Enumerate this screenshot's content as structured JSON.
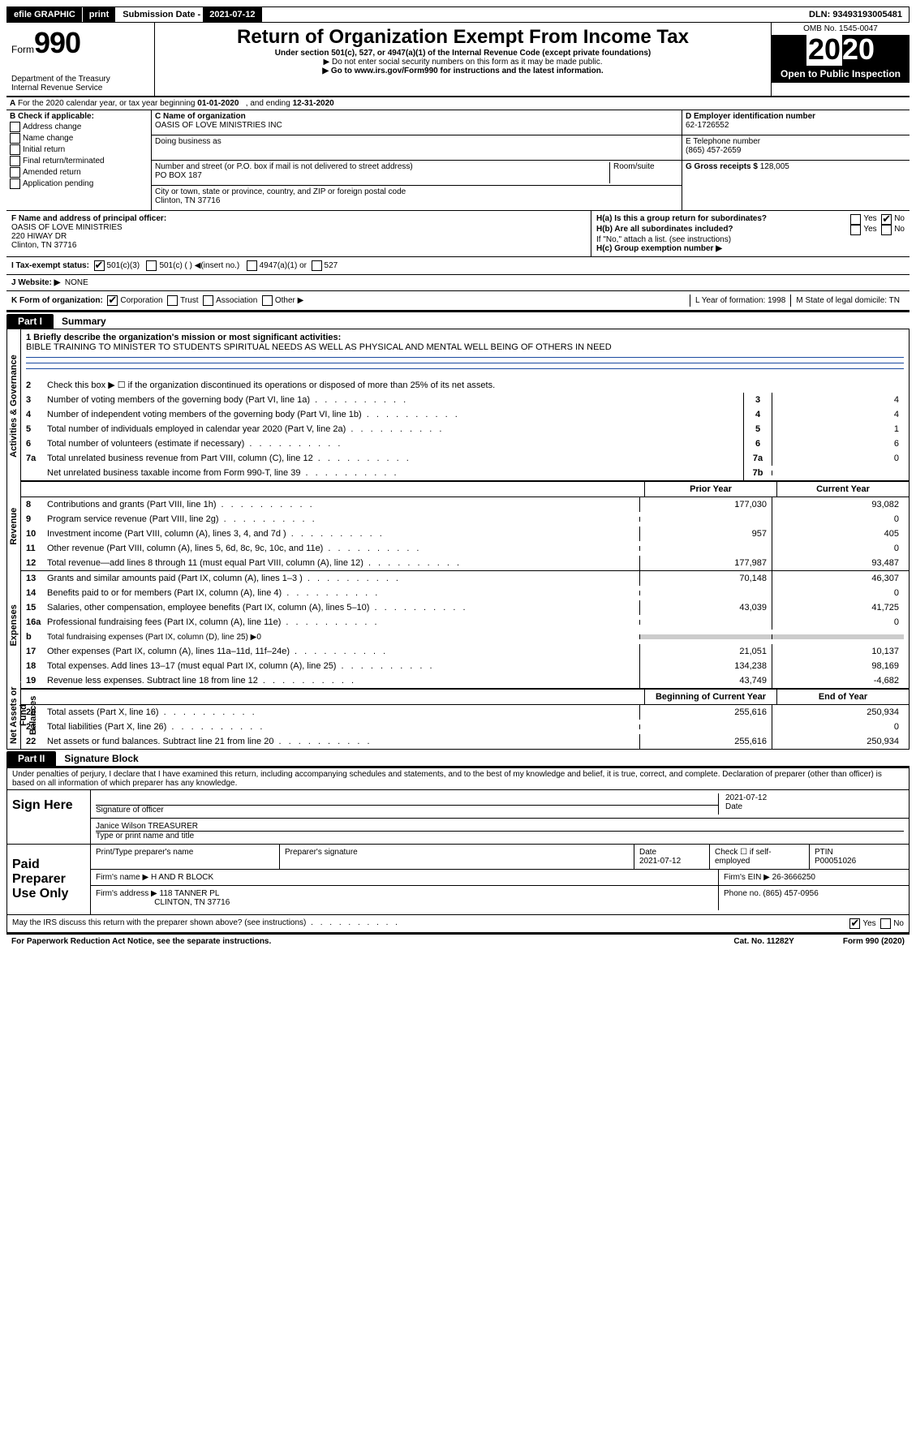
{
  "topbar": {
    "efile": "efile GRAPHIC",
    "print": "print",
    "sub_label": "Submission Date - ",
    "sub_date": "2021-07-12",
    "dln": "DLN: 93493193005481"
  },
  "header": {
    "form_prefix": "Form",
    "form_no": "990",
    "dept": "Department of the Treasury\nInternal Revenue Service",
    "title": "Return of Organization Exempt From Income Tax",
    "sub1": "Under section 501(c), 527, or 4947(a)(1) of the Internal Revenue Code (except private foundations)",
    "sub2": "▶ Do not enter social security numbers on this form as it may be made public.",
    "sub3": "▶ Go to www.irs.gov/Form990 for instructions and the latest information.",
    "omb": "OMB No. 1545-0047",
    "year": "2020",
    "open": "Open to Public Inspection"
  },
  "rowA": "A For the 2020 calendar year, or tax year beginning 01-01-2020   , and ending 12-31-2020",
  "colB": {
    "title": "B Check if applicable:",
    "items": [
      "Address change",
      "Name change",
      "Initial return",
      "Final return/terminated",
      "Amended return",
      "Application pending"
    ]
  },
  "colC": {
    "name_label": "C Name of organization",
    "name": "OASIS OF LOVE MINISTRIES INC",
    "dba_label": "Doing business as",
    "addr_label": "Number and street (or P.O. box if mail is not delivered to street address)",
    "room_label": "Room/suite",
    "addr": "PO BOX 187",
    "city_label": "City or town, state or province, country, and ZIP or foreign postal code",
    "city": "Clinton, TN  37716"
  },
  "colD": {
    "ein_label": "D Employer identification number",
    "ein": "62-1726552",
    "tel_label": "E Telephone number",
    "tel": "(865) 457-2659",
    "gross_label": "G Gross receipts $ ",
    "gross": "128,005"
  },
  "rowF": {
    "label": "F  Name and address of principal officer:",
    "name": "OASIS OF LOVE MINISTRIES",
    "addr1": "220 HIWAY DR",
    "addr2": "Clinton, TN  37716"
  },
  "rowH": {
    "ha": "H(a)  Is this a group return for subordinates?",
    "hb": "H(b)  Are all subordinates included?",
    "hb_note": "If \"No,\" attach a list. (see instructions)",
    "hc": "H(c)  Group exemption number ▶",
    "yes": "Yes",
    "no": "No"
  },
  "rowI": {
    "label": "I    Tax-exempt status:",
    "o1": "501(c)(3)",
    "o2": "501(c) (   ) ◀(insert no.)",
    "o3": "4947(a)(1) or",
    "o4": "527"
  },
  "rowJ": {
    "label": "J   Website: ▶",
    "val": "NONE"
  },
  "rowK": {
    "label": "K Form of organization:",
    "o1": "Corporation",
    "o2": "Trust",
    "o3": "Association",
    "o4": "Other ▶",
    "L": "L Year of formation: 1998",
    "M": "M State of legal domicile: TN"
  },
  "partI": {
    "tab": "Part I",
    "title": "Summary",
    "briefly_label": "1  Briefly describe the organization's mission or most significant activities:",
    "briefly": "BIBLE TRAINING TO MINISTER TO STUDENTS SPIRITUAL NEEDS AS WELL AS PHYSICAL AND MENTAL WELL BEING OF OTHERS IN NEED",
    "line2": "Check this box ▶ ☐  if the organization discontinued its operations or disposed of more than 25% of its net assets.",
    "sideA": "Activities & Governance",
    "sideR": "Revenue",
    "sideE": "Expenses",
    "sideN": "Net Assets or Fund Balances",
    "prior": "Prior Year",
    "current": "Current Year",
    "begin": "Beginning of Current Year",
    "end": "End of Year",
    "rows_gov": [
      {
        "n": "3",
        "t": "Number of voting members of the governing body (Part VI, line 1a)",
        "box": "3",
        "v": "4"
      },
      {
        "n": "4",
        "t": "Number of independent voting members of the governing body (Part VI, line 1b)",
        "box": "4",
        "v": "4"
      },
      {
        "n": "5",
        "t": "Total number of individuals employed in calendar year 2020 (Part V, line 2a)",
        "box": "5",
        "v": "1"
      },
      {
        "n": "6",
        "t": "Total number of volunteers (estimate if necessary)",
        "box": "6",
        "v": "6"
      },
      {
        "n": "7a",
        "t": "Total unrelated business revenue from Part VIII, column (C), line 12",
        "box": "7a",
        "v": "0"
      },
      {
        "n": "",
        "t": "Net unrelated business taxable income from Form 990-T, line 39",
        "box": "7b",
        "v": ""
      }
    ],
    "rows_rev": [
      {
        "n": "8",
        "t": "Contributions and grants (Part VIII, line 1h)",
        "p": "177,030",
        "c": "93,082"
      },
      {
        "n": "9",
        "t": "Program service revenue (Part VIII, line 2g)",
        "p": "",
        "c": "0"
      },
      {
        "n": "10",
        "t": "Investment income (Part VIII, column (A), lines 3, 4, and 7d )",
        "p": "957",
        "c": "405"
      },
      {
        "n": "11",
        "t": "Other revenue (Part VIII, column (A), lines 5, 6d, 8c, 9c, 10c, and 11e)",
        "p": "",
        "c": "0"
      },
      {
        "n": "12",
        "t": "Total revenue—add lines 8 through 11 (must equal Part VIII, column (A), line 12)",
        "p": "177,987",
        "c": "93,487"
      }
    ],
    "rows_exp": [
      {
        "n": "13",
        "t": "Grants and similar amounts paid (Part IX, column (A), lines 1–3 )",
        "p": "70,148",
        "c": "46,307"
      },
      {
        "n": "14",
        "t": "Benefits paid to or for members (Part IX, column (A), line 4)",
        "p": "",
        "c": "0"
      },
      {
        "n": "15",
        "t": "Salaries, other compensation, employee benefits (Part IX, column (A), lines 5–10)",
        "p": "43,039",
        "c": "41,725"
      },
      {
        "n": "16a",
        "t": "Professional fundraising fees (Part IX, column (A), line 11e)",
        "p": "",
        "c": "0"
      },
      {
        "n": "b",
        "t": "Total fundraising expenses (Part IX, column (D), line 25) ▶0",
        "p": null,
        "c": null
      },
      {
        "n": "17",
        "t": "Other expenses (Part IX, column (A), lines 11a–11d, 11f–24e)",
        "p": "21,051",
        "c": "10,137"
      },
      {
        "n": "18",
        "t": "Total expenses. Add lines 13–17 (must equal Part IX, column (A), line 25)",
        "p": "134,238",
        "c": "98,169"
      },
      {
        "n": "19",
        "t": "Revenue less expenses. Subtract line 18 from line 12",
        "p": "43,749",
        "c": "-4,682"
      }
    ],
    "rows_net": [
      {
        "n": "20",
        "t": "Total assets (Part X, line 16)",
        "p": "255,616",
        "c": "250,934"
      },
      {
        "n": "21",
        "t": "Total liabilities (Part X, line 26)",
        "p": "",
        "c": "0"
      },
      {
        "n": "22",
        "t": "Net assets or fund balances. Subtract line 21 from line 20",
        "p": "255,616",
        "c": "250,934"
      }
    ]
  },
  "partII": {
    "tab": "Part II",
    "title": "Signature Block",
    "perjury": "Under penalties of perjury, I declare that I have examined this return, including accompanying schedules and statements, and to the best of my knowledge and belief, it is true, correct, and complete. Declaration of preparer (other than officer) is based on all information of which preparer has any knowledge.",
    "sign_here": "Sign Here",
    "sig_off": "Signature of officer",
    "sig_date": "2021-07-12",
    "date_lbl": "Date",
    "typed": "Janice Wilson TREASURER",
    "typed_lbl": "Type or print name and title",
    "paid": "Paid Preparer Use Only",
    "p_name_lbl": "Print/Type preparer's name",
    "p_sig_lbl": "Preparer's signature",
    "p_date_lbl": "Date",
    "p_date": "2021-07-12",
    "p_check_lbl": "Check ☐ if self-employed",
    "p_ptin_lbl": "PTIN",
    "p_ptin": "P00051026",
    "firm_name_lbl": "Firm's name    ▶",
    "firm_name": "H AND R BLOCK",
    "firm_ein_lbl": "Firm's EIN ▶",
    "firm_ein": "26-3666250",
    "firm_addr_lbl": "Firm's address ▶",
    "firm_addr1": "118 TANNER PL",
    "firm_addr2": "CLINTON, TN  37716",
    "firm_phone_lbl": "Phone no.",
    "firm_phone": "(865) 457-0956",
    "discuss": "May the IRS discuss this return with the preparer shown above? (see instructions)",
    "yes": "Yes",
    "no": "No"
  },
  "footer": {
    "pra": "For Paperwork Reduction Act Notice, see the separate instructions.",
    "cat": "Cat. No. 11282Y",
    "form": "Form 990 (2020)"
  }
}
